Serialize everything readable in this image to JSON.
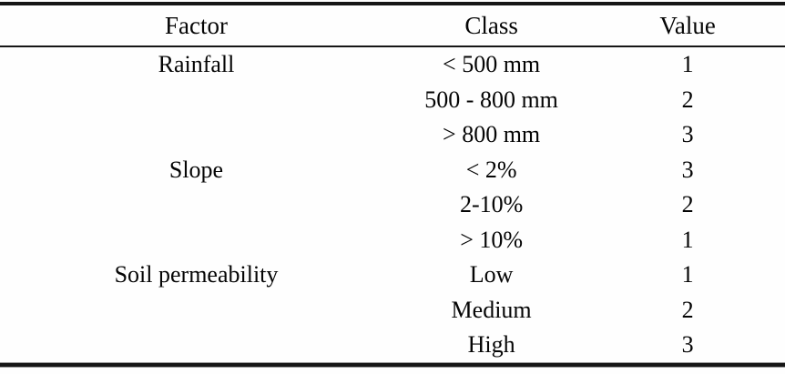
{
  "table": {
    "columns": [
      "Factor",
      "Class",
      "Value"
    ],
    "rows": [
      {
        "factor": "Rainfall",
        "class": "< 500 mm",
        "value": "1"
      },
      {
        "factor": "",
        "class": "500 - 800 mm",
        "value": "2"
      },
      {
        "factor": "",
        "class": "> 800 mm",
        "value": "3"
      },
      {
        "factor": "Slope",
        "class": "< 2%",
        "value": "3"
      },
      {
        "factor": "",
        "class": "2-10%",
        "value": "2"
      },
      {
        "factor": "",
        "class": "> 10%",
        "value": "1"
      },
      {
        "factor": "Soil permeability",
        "class": "Low",
        "value": "1"
      },
      {
        "factor": "",
        "class": "Medium",
        "value": "2"
      },
      {
        "factor": "",
        "class": "High",
        "value": "3"
      }
    ],
    "colors": {
      "text": "#050505",
      "rule": "#161616",
      "background": "#fefefe"
    }
  }
}
